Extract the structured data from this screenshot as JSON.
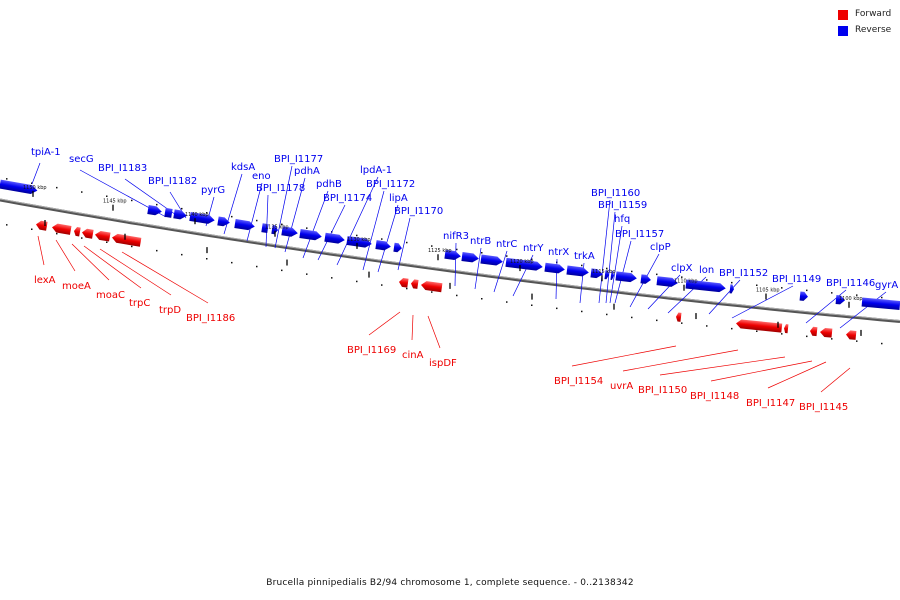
{
  "legend": [
    {
      "label": "Forward",
      "color": "#ee0000"
    },
    {
      "label": "Reverse",
      "color": "#0000ee"
    }
  ],
  "caption": "Brucella pinnipedialis B2/94 chromosome 1, complete sequence. - 0..2138342",
  "colors": {
    "forward": "#ee0000",
    "reverse": "#0000ee",
    "axis": "#777777"
  },
  "kbp_ticks": [
    "1150 kbp",
    "1145 kbp",
    "1140 kbp",
    "1135 kbp",
    "1130 kbp",
    "1125 kbp",
    "1120 kbp",
    "1115 kbp",
    "1110 kbp",
    "1105 kbp",
    "1100 kbp"
  ],
  "reverse_genes": [
    "tpiA-1",
    "secG",
    "BPI_I1183",
    "BPI_I1182",
    "pyrG",
    "kdsA",
    "eno",
    "BPI_I1178",
    "BPI_I1177",
    "pdhA",
    "pdhB",
    "BPI_I1174",
    "lpdA-1",
    "BPI_I1172",
    "lipA",
    "BPI_I1170",
    "nifR3",
    "ntrB",
    "ntrC",
    "ntrY",
    "ntrX",
    "trkA",
    "BPI_I1160",
    "BPI_I1159",
    "hfq",
    "BPI_I1157",
    "clpP",
    "clpX",
    "lon",
    "BPI_I1152",
    "BPI_I1149",
    "BPI_I1146",
    "gyrA"
  ],
  "forward_genes": [
    "lexA",
    "moeA",
    "moaC",
    "trpC",
    "trpD",
    "BPI_I1186",
    "BPI_I1169",
    "cinA",
    "ispDF",
    "BPI_I1154",
    "uvrA",
    "BPI_I1150",
    "BPI_I1148",
    "BPI_I1147",
    "BPI_I1145"
  ]
}
